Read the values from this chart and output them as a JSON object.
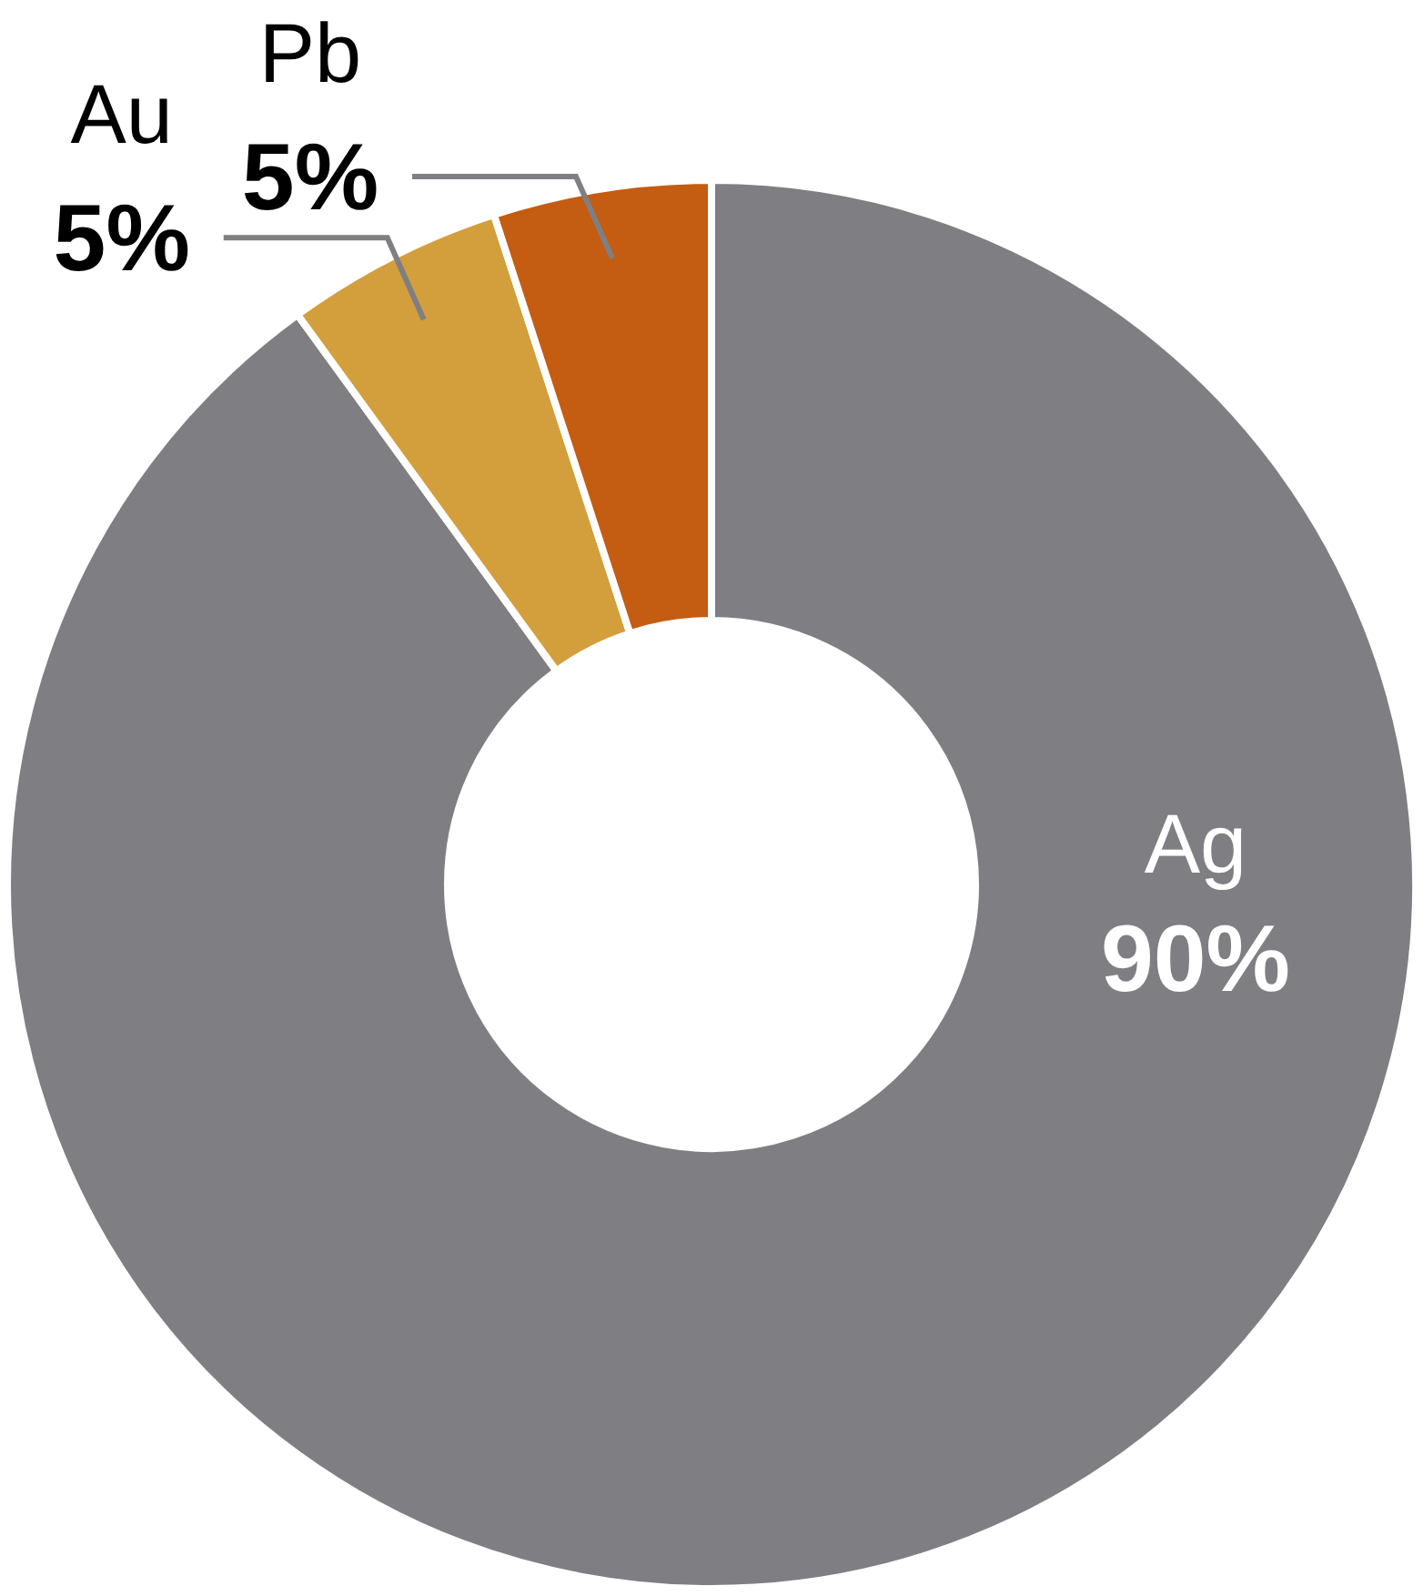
{
  "chart_data": {
    "type": "donut",
    "categories": [
      "Ag",
      "Au",
      "Pb"
    ],
    "values": [
      90,
      5,
      5
    ],
    "colors": [
      "#7f7f83",
      "#d39e3c",
      "#c45c11"
    ],
    "value_labels": [
      "90%",
      "5%",
      "5%"
    ]
  }
}
